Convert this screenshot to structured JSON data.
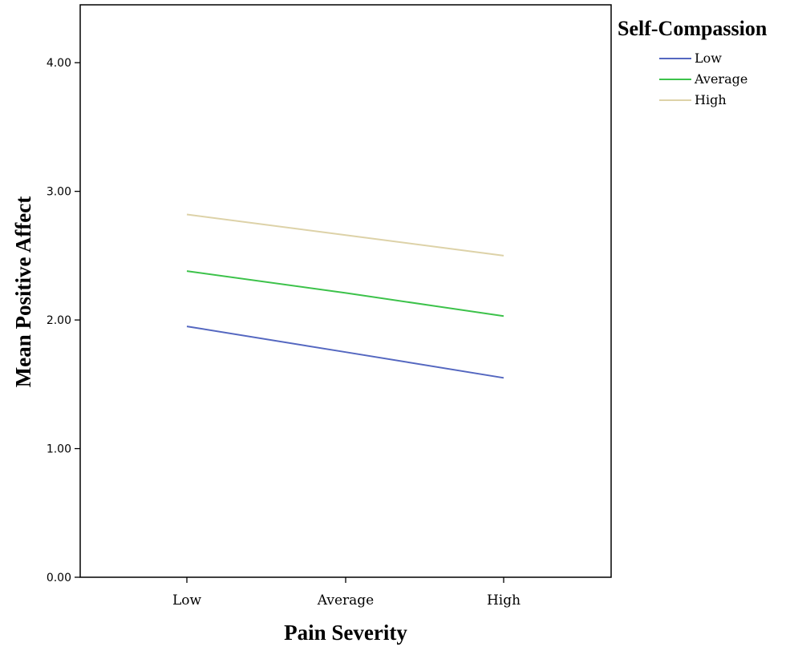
{
  "chart_data": {
    "type": "line",
    "xlabel": "Pain Severity",
    "ylabel": "Mean Positive Affect",
    "categories": [
      "Low",
      "Average",
      "High"
    ],
    "ylim": [
      0,
      4.45
    ],
    "yticks": [
      0,
      1,
      2,
      3,
      4
    ],
    "ytick_labels": [
      "0.00",
      "1.00",
      "2.00",
      "3.00",
      "4.00"
    ],
    "grid": false,
    "legend": {
      "title": "Self-Compassion",
      "position": "top-right outside plot"
    },
    "series": [
      {
        "name": "Low",
        "color": "#5467c0",
        "values": [
          1.95,
          1.75,
          1.55
        ]
      },
      {
        "name": "Average",
        "color": "#3cc24a",
        "values": [
          2.38,
          2.21,
          2.03
        ]
      },
      {
        "name": "High",
        "color": "#ddd2a8",
        "values": [
          2.82,
          2.66,
          2.5
        ]
      }
    ]
  }
}
